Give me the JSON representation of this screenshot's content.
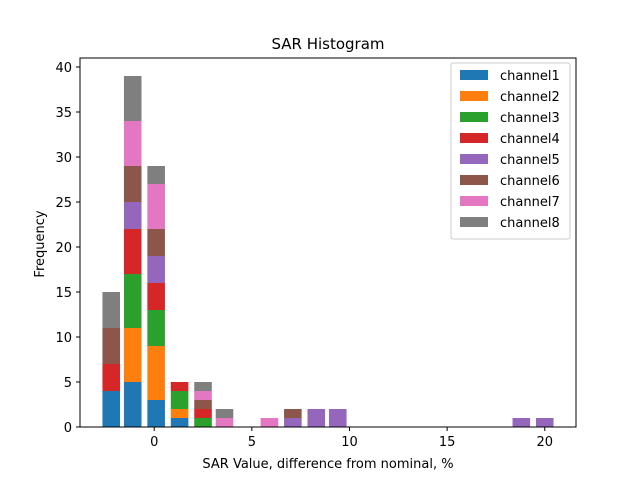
{
  "chart_data": {
    "type": "bar",
    "stacked": true,
    "title": "SAR Histogram",
    "xlabel": "SAR Value, difference from nominal, %",
    "ylabel": "Frequency",
    "xlim": [
      -3.8,
      21.6
    ],
    "ylim": [
      0,
      41
    ],
    "xticks": [
      0,
      5,
      10,
      15,
      20
    ],
    "yticks": [
      0,
      5,
      10,
      15,
      20,
      25,
      30,
      35,
      40
    ],
    "bar_width": 0.9,
    "x": [
      -2.2,
      -1.1,
      0.1,
      1.3,
      2.5,
      3.6,
      5.9,
      7.1,
      8.3,
      9.4,
      18.8,
      20.0
    ],
    "legend_position": "top-right",
    "grid": false,
    "series": [
      {
        "name": "channel1",
        "color": "#1f77b4",
        "values": [
          4,
          5,
          3,
          1,
          0,
          0,
          0,
          0,
          0,
          0,
          0,
          0
        ]
      },
      {
        "name": "channel2",
        "color": "#ff7f0e",
        "values": [
          0,
          6,
          6,
          1,
          0,
          0,
          0,
          0,
          0,
          0,
          0,
          0
        ]
      },
      {
        "name": "channel3",
        "color": "#2ca02c",
        "values": [
          0,
          6,
          4,
          2,
          1,
          0,
          0,
          0,
          0,
          0,
          0,
          0
        ]
      },
      {
        "name": "channel4",
        "color": "#d62728",
        "values": [
          3,
          5,
          3,
          1,
          1,
          0,
          0,
          0,
          0,
          0,
          0,
          0
        ]
      },
      {
        "name": "channel5",
        "color": "#9467bd",
        "values": [
          0,
          3,
          3,
          0,
          0,
          0,
          0,
          1,
          2,
          2,
          1,
          1
        ]
      },
      {
        "name": "channel6",
        "color": "#8c564b",
        "values": [
          4,
          4,
          3,
          0,
          1,
          0,
          0,
          1,
          0,
          0,
          0,
          0
        ]
      },
      {
        "name": "channel7",
        "color": "#e377c2",
        "values": [
          0,
          5,
          5,
          0,
          1,
          1,
          1,
          0,
          0,
          0,
          0,
          0
        ]
      },
      {
        "name": "channel8",
        "color": "#7f7f7f",
        "values": [
          4,
          5,
          2,
          0,
          1,
          1,
          0,
          0,
          0,
          0,
          0,
          0
        ]
      }
    ]
  }
}
